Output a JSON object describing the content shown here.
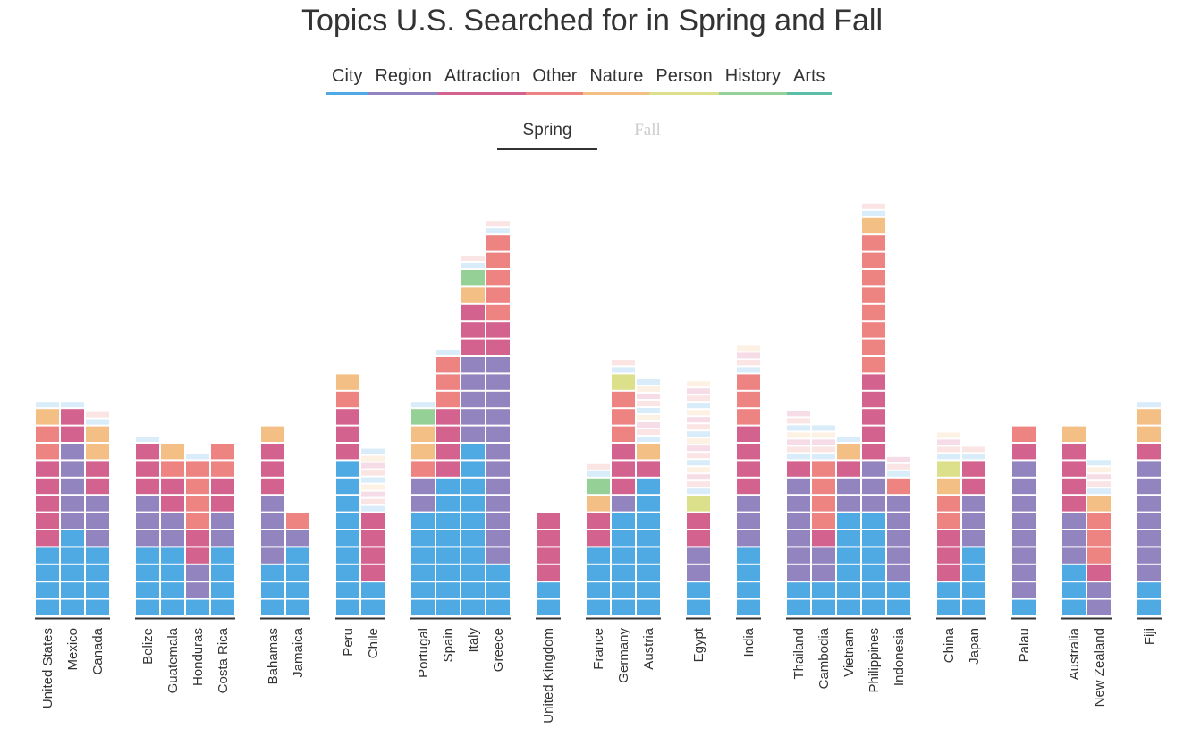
{
  "title": "Topics U.S. Searched for in Spring and Fall",
  "categories": [
    {
      "label": "City",
      "color": "#4fa9e3"
    },
    {
      "label": "Region",
      "color": "#9284be"
    },
    {
      "label": "Attraction",
      "color": "#d4628f"
    },
    {
      "label": "Other",
      "color": "#ee8482"
    },
    {
      "label": "Nature",
      "color": "#f4bf84"
    },
    {
      "label": "Person",
      "color": "#dde08a"
    },
    {
      "label": "History",
      "color": "#95d096"
    },
    {
      "label": "Arts",
      "color": "#5cbfa5"
    }
  ],
  "seasons": {
    "active": "Spring",
    "inactive": "Fall"
  },
  "chart_data": {
    "type": "bar",
    "stacked": true,
    "title": "Topics U.S. Searched for in Spring and Fall",
    "unit": "number of searched topics (blocks)",
    "series_order": [
      "City",
      "Region",
      "Attraction",
      "Other",
      "Nature",
      "Person",
      "History",
      "Arts"
    ],
    "groups": [
      {
        "countries": [
          {
            "name": "United States",
            "stack": [
              4,
              0,
              5,
              2,
              1,
              0,
              0,
              0
            ],
            "faded": 1
          },
          {
            "name": "Mexico",
            "stack": [
              5,
              5,
              2,
              0,
              0,
              0,
              0,
              0
            ],
            "faded": 1
          },
          {
            "name": "Canada",
            "stack": [
              4,
              3,
              2,
              0,
              2,
              0,
              0,
              0
            ],
            "faded": 2
          }
        ]
      },
      {
        "countries": [
          {
            "name": "Belize",
            "stack": [
              4,
              3,
              3,
              0,
              0,
              0,
              0,
              0
            ],
            "faded": 1
          },
          {
            "name": "Guatemala",
            "stack": [
              4,
              2,
              2,
              1,
              1,
              0,
              0,
              0
            ],
            "faded": 0
          },
          {
            "name": "Honduras",
            "stack": [
              1,
              2,
              2,
              4,
              0,
              0,
              0,
              0
            ],
            "faded": 1
          },
          {
            "name": "Costa Rica",
            "stack": [
              4,
              2,
              2,
              2,
              0,
              0,
              0,
              0
            ],
            "faded": 0
          }
        ]
      },
      {
        "countries": [
          {
            "name": "Bahamas",
            "stack": [
              3,
              4,
              3,
              0,
              1,
              0,
              0,
              0
            ],
            "faded": 0
          },
          {
            "name": "Jamaica",
            "stack": [
              4,
              1,
              0,
              1,
              0,
              0,
              0,
              0
            ],
            "faded": 0
          }
        ]
      },
      {
        "countries": [
          {
            "name": "Peru",
            "stack": [
              9,
              0,
              3,
              1,
              1,
              0,
              0,
              0
            ],
            "faded": 0
          },
          {
            "name": "Chile",
            "stack": [
              2,
              0,
              4,
              0,
              0,
              0,
              0,
              0
            ],
            "faded": 9
          }
        ]
      },
      {
        "countries": [
          {
            "name": "Portugal",
            "stack": [
              6,
              2,
              0,
              1,
              2,
              0,
              1,
              0
            ],
            "faded": 1
          },
          {
            "name": "Spain",
            "stack": [
              8,
              0,
              4,
              3,
              0,
              0,
              0,
              0
            ],
            "faded": 1
          },
          {
            "name": "Italy",
            "stack": [
              10,
              5,
              3,
              0,
              1,
              0,
              1,
              0
            ],
            "faded": 2
          },
          {
            "name": "Greece",
            "stack": [
              3,
              12,
              2,
              5,
              0,
              0,
              0,
              0
            ],
            "faded": 2
          }
        ]
      },
      {
        "countries": [
          {
            "name": "United Kingdom",
            "stack": [
              2,
              0,
              4,
              0,
              0,
              0,
              0,
              0
            ],
            "faded": 0
          }
        ]
      },
      {
        "countries": [
          {
            "name": "France",
            "stack": [
              4,
              0,
              2,
              0,
              1,
              0,
              1,
              0
            ],
            "faded": 2
          },
          {
            "name": "Germany",
            "stack": [
              6,
              1,
              3,
              3,
              0,
              1,
              0,
              0
            ],
            "faded": 2
          },
          {
            "name": "Austria",
            "stack": [
              8,
              0,
              1,
              0,
              1,
              0,
              0,
              0
            ],
            "faded": 9
          }
        ]
      },
      {
        "countries": [
          {
            "name": "Egypt",
            "stack": [
              2,
              2,
              2,
              0,
              0,
              1,
              0,
              0
            ],
            "faded": 16
          }
        ]
      },
      {
        "countries": [
          {
            "name": "India",
            "stack": [
              4,
              3,
              4,
              3,
              0,
              0,
              0,
              0
            ],
            "faded": 4
          }
        ]
      },
      {
        "countries": [
          {
            "name": "Thailand",
            "stack": [
              2,
              6,
              1,
              0,
              0,
              0,
              0,
              0
            ],
            "faded": 7
          },
          {
            "name": "Cambodia",
            "stack": [
              2,
              2,
              1,
              4,
              0,
              0,
              0,
              0
            ],
            "faded": 5
          },
          {
            "name": "Vietnam",
            "stack": [
              6,
              2,
              1,
              0,
              1,
              0,
              0,
              0
            ],
            "faded": 1
          },
          {
            "name": "Philippines",
            "stack": [
              6,
              3,
              5,
              8,
              1,
              0,
              0,
              0
            ],
            "faded": 2
          },
          {
            "name": "Indonesia",
            "stack": [
              2,
              5,
              0,
              1,
              0,
              0,
              0,
              0
            ],
            "faded": 3
          }
        ]
      },
      {
        "countries": [
          {
            "name": "China",
            "stack": [
              2,
              0,
              3,
              2,
              1,
              1,
              0,
              0
            ],
            "faded": 4
          },
          {
            "name": "Japan",
            "stack": [
              4,
              3,
              2,
              0,
              0,
              0,
              0,
              0
            ],
            "faded": 2
          }
        ]
      },
      {
        "countries": [
          {
            "name": "Palau",
            "stack": [
              1,
              8,
              1,
              1,
              0,
              0,
              0,
              0
            ],
            "faded": 0
          }
        ]
      },
      {
        "countries": [
          {
            "name": "Australia",
            "stack": [
              3,
              3,
              4,
              0,
              1,
              0,
              0,
              0
            ],
            "faded": 0
          },
          {
            "name": "New Zealand",
            "stack": [
              0,
              2,
              1,
              3,
              1,
              0,
              0,
              0
            ],
            "faded": 5
          }
        ]
      },
      {
        "countries": [
          {
            "name": "Fiji",
            "stack": [
              2,
              7,
              1,
              0,
              2,
              0,
              0,
              0
            ],
            "faded": 1
          }
        ]
      }
    ]
  }
}
